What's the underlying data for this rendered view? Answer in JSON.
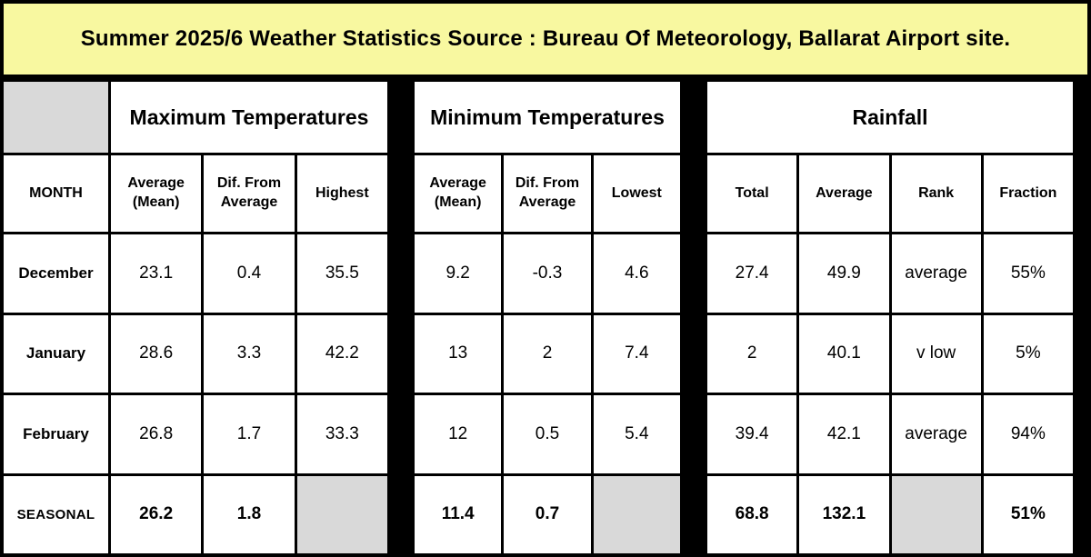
{
  "banner": {
    "title": "Summer 2025/6 Weather Statistics Source : Bureau Of Meteorology, Ballarat Airport site."
  },
  "colors": {
    "banner_bg": "#F8F8A0",
    "cell_bg": "#FFFFFF",
    "gray_cell": "#D9D9D9",
    "border": "#000000"
  },
  "month_header": "MONTH",
  "sections": [
    {
      "title": "Maximum Temperatures",
      "columns": [
        "Average (Mean)",
        "Dif. From Average",
        "Highest"
      ]
    },
    {
      "title": "Minimum Temperatures",
      "columns": [
        "Average (Mean)",
        "Dif. From Average",
        "Lowest"
      ]
    },
    {
      "title": "Rainfall",
      "columns": [
        "Total",
        "Average",
        "Rank",
        "Fraction"
      ]
    }
  ],
  "rows": [
    {
      "month": "December",
      "max": [
        "23.1",
        "0.4",
        "35.5"
      ],
      "min": [
        "9.2",
        "-0.3",
        "4.6"
      ],
      "rain": [
        "27.4",
        "49.9",
        "average",
        "55%"
      ]
    },
    {
      "month": "January",
      "max": [
        "28.6",
        "3.3",
        "42.2"
      ],
      "min": [
        "13",
        "2",
        "7.4"
      ],
      "rain": [
        "2",
        "40.1",
        "v low",
        "5%"
      ]
    },
    {
      "month": "February",
      "max": [
        "26.8",
        "1.7",
        "33.3"
      ],
      "min": [
        "12",
        "0.5",
        "5.4"
      ],
      "rain": [
        "39.4",
        "42.1",
        "average",
        "94%"
      ]
    },
    {
      "month": "SEASONAL",
      "max": [
        "26.2",
        "1.8",
        ""
      ],
      "min": [
        "11.4",
        "0.7",
        ""
      ],
      "rain": [
        "68.8",
        "132.1",
        "",
        "51%"
      ]
    }
  ],
  "chart_data": {
    "type": "table",
    "title": "Summer 2025/6 Weather Statistics Source : Bureau Of Meteorology, Ballarat Airport site.",
    "column_groups": [
      "",
      "Maximum Temperatures",
      "Minimum Temperatures",
      "Rainfall"
    ],
    "columns": [
      "MONTH",
      "Average (Mean)",
      "Dif. From Average",
      "Highest",
      "Average (Mean)",
      "Dif. From Average",
      "Lowest",
      "Total",
      "Average",
      "Rank",
      "Fraction"
    ],
    "rows": [
      [
        "December",
        23.1,
        0.4,
        35.5,
        9.2,
        -0.3,
        4.6,
        27.4,
        49.9,
        "average",
        "55%"
      ],
      [
        "January",
        28.6,
        3.3,
        42.2,
        13,
        2,
        7.4,
        2,
        40.1,
        "v low",
        "5%"
      ],
      [
        "February",
        26.8,
        1.7,
        33.3,
        12,
        0.5,
        5.4,
        39.4,
        42.1,
        "average",
        "94%"
      ],
      [
        "SEASONAL",
        26.2,
        1.8,
        null,
        11.4,
        0.7,
        null,
        68.8,
        132.1,
        null,
        "51%"
      ]
    ]
  }
}
